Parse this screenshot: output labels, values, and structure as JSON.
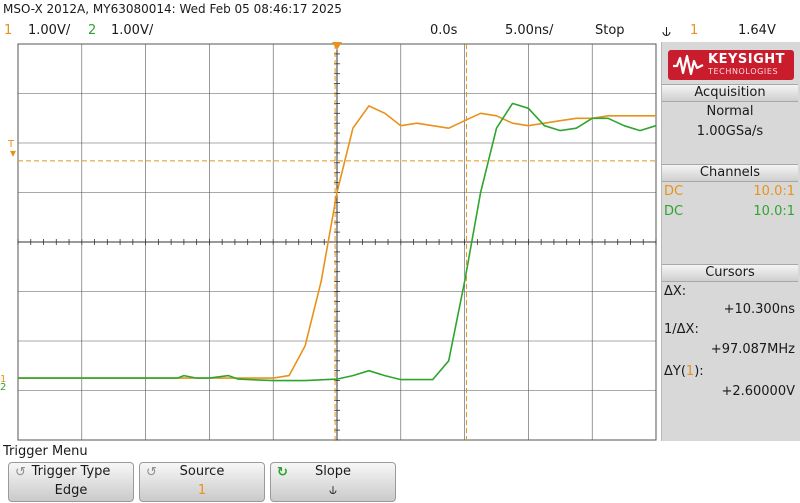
{
  "header": {
    "title": "MSO-X 2012A, MY63080014: Wed Feb 05 08:46:17 2025"
  },
  "status": {
    "ch1_num": "1",
    "ch1_scale": "1.00V/",
    "ch2_num": "2",
    "ch2_scale": "1.00V/",
    "time_delay": "0.0s",
    "time_scale": "5.00ns/",
    "run_state": "Stop",
    "trigger_slope_icon": "falling-edge-icon",
    "trigger_source": "1",
    "trigger_level": "1.64V"
  },
  "brand": {
    "name": "KEYSIGHT",
    "sub": "TECHNOLOGIES"
  },
  "acquisition": {
    "header": "Acquisition",
    "mode": "Normal",
    "rate": "1.00GSa/s"
  },
  "channels": {
    "header": "Channels",
    "items": [
      {
        "coupling": "DC",
        "probe": "10.0:1",
        "color": "#e8921c"
      },
      {
        "coupling": "DC",
        "probe": "10.0:1",
        "color": "#2fa52f"
      }
    ]
  },
  "cursors": {
    "header": "Cursors",
    "dx_label": "ΔX:",
    "dx_value": "+10.300ns",
    "inv_dx_label": "1/ΔX:",
    "inv_dx_value": "+97.087MHz",
    "dy_label_pre": "ΔY(",
    "dy_label_ch": "1",
    "dy_label_post": "):",
    "dy_value": "+2.60000V"
  },
  "menu": {
    "title": "Trigger Menu",
    "softkeys": [
      {
        "label": "Trigger Type",
        "value": "Edge",
        "icon": "rotate-knob-icon"
      },
      {
        "label": "Source",
        "value": "1",
        "icon": "rotate-knob-icon"
      },
      {
        "label": "Slope",
        "value": "⫝",
        "icon": "rotate-knob-icon"
      }
    ]
  },
  "colors": {
    "ch1": "#e8921c",
    "ch2": "#2fa52f",
    "grid": "#555555",
    "background": "#ffffff"
  },
  "chart_data": {
    "type": "line",
    "title": "",
    "xlabel": "",
    "ylabel": "",
    "x_unit": "ns",
    "y_unit": "V",
    "xlim": [
      -25,
      25
    ],
    "ylim": [
      -4,
      4
    ],
    "grid": true,
    "series": [
      {
        "name": "1",
        "color": "#e8921c",
        "points": [
          [
            -25,
            -2.75
          ],
          [
            -5,
            -2.75
          ],
          [
            -3.75,
            -2.7
          ],
          [
            -2.5,
            -2.1
          ],
          [
            -1.25,
            -0.8
          ],
          [
            0,
            1.0
          ],
          [
            1.25,
            2.3
          ],
          [
            2.5,
            2.75
          ],
          [
            3.75,
            2.6
          ],
          [
            5,
            2.35
          ],
          [
            6.25,
            2.4
          ],
          [
            7.5,
            2.35
          ],
          [
            8.75,
            2.3
          ],
          [
            10,
            2.45
          ],
          [
            11.25,
            2.6
          ],
          [
            12.5,
            2.55
          ],
          [
            13.75,
            2.4
          ],
          [
            15,
            2.35
          ],
          [
            16.25,
            2.4
          ],
          [
            17.5,
            2.45
          ],
          [
            18.75,
            2.5
          ],
          [
            20,
            2.5
          ],
          [
            21.25,
            2.55
          ],
          [
            22.5,
            2.55
          ],
          [
            25,
            2.55
          ]
        ]
      },
      {
        "name": "2",
        "color": "#2fa52f",
        "points": [
          [
            -25,
            -2.75
          ],
          [
            -12.5,
            -2.75
          ],
          [
            -12,
            -2.7
          ],
          [
            -11,
            -2.75
          ],
          [
            -10,
            -2.75
          ],
          [
            -8.5,
            -2.7
          ],
          [
            -7.75,
            -2.77
          ],
          [
            -5,
            -2.8
          ],
          [
            -2.5,
            -2.8
          ],
          [
            0,
            -2.77
          ],
          [
            1.25,
            -2.7
          ],
          [
            2.5,
            -2.6
          ],
          [
            3.75,
            -2.7
          ],
          [
            5,
            -2.78
          ],
          [
            7.5,
            -2.78
          ],
          [
            8.75,
            -2.4
          ],
          [
            10,
            -0.8
          ],
          [
            11.25,
            1.0
          ],
          [
            12.5,
            2.3
          ],
          [
            13.75,
            2.8
          ],
          [
            15,
            2.7
          ],
          [
            16.25,
            2.35
          ],
          [
            17.5,
            2.25
          ],
          [
            18.75,
            2.3
          ],
          [
            20,
            2.5
          ],
          [
            21.25,
            2.5
          ],
          [
            22.5,
            2.35
          ],
          [
            23.75,
            2.25
          ],
          [
            25,
            2.35
          ]
        ]
      }
    ],
    "cursors_x_ns": [
      -0.15,
      10.15
    ],
    "cursor_y_level_v": 1.64,
    "trigger_level_v": 1.64,
    "trigger_time_ns": 0
  }
}
